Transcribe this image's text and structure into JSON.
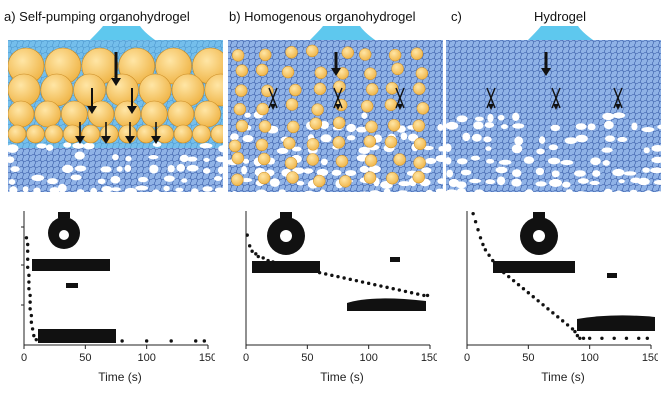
{
  "panels": [
    {
      "label": "a) Self-pumping organohydrogel",
      "droplet": "#5ec8ee",
      "gel": "#8fb2e6",
      "sphere": "#f0b64a"
    },
    {
      "label": "b) Homogenous organohydrogel",
      "droplet": "#5ec8ee",
      "gel": "#8fb2e6",
      "sphere": "#f0b64a"
    },
    {
      "label": "c)",
      "title": "Hydrogel",
      "droplet": "#5ec8ee",
      "gel": "#8fb2e6"
    }
  ],
  "chart_data": [
    {
      "type": "scatter",
      "xlabel": "Time (s)",
      "xlim": [
        0,
        150
      ],
      "xticks": [
        "0",
        "50",
        "100",
        "150"
      ],
      "ylabel": "",
      "series": [
        {
          "x": [
            2,
            3,
            3,
            3,
            3,
            4,
            4,
            4,
            5,
            5,
            5,
            6,
            6,
            7,
            8,
            10,
            14,
            20,
            30,
            40,
            60,
            80,
            100,
            120,
            140,
            147
          ],
          "y": [
            0.8,
            0.75,
            0.7,
            0.64,
            0.58,
            0.52,
            0.47,
            0.42,
            0.37,
            0.32,
            0.27,
            0.22,
            0.17,
            0.12,
            0.07,
            0.04,
            0.03,
            0.03,
            0.03,
            0.03,
            0.03,
            0.03,
            0.03,
            0.03,
            0.03,
            0.03
          ]
        }
      ]
    },
    {
      "type": "scatter",
      "xlabel": "Time (s)",
      "xlim": [
        0,
        150
      ],
      "xticks": [
        "0",
        "50",
        "100",
        "150"
      ],
      "ylabel": "",
      "series": [
        {
          "x": [
            1,
            3,
            5,
            8,
            10,
            14,
            18,
            22,
            26,
            30,
            35,
            40,
            45,
            50,
            55,
            60,
            65,
            70,
            75,
            80,
            85,
            90,
            95,
            100,
            105,
            110,
            115,
            120,
            125,
            130,
            135,
            140,
            145,
            148
          ],
          "y": [
            0.82,
            0.74,
            0.7,
            0.68,
            0.66,
            0.65,
            0.63,
            0.62,
            0.61,
            0.6,
            0.59,
            0.58,
            0.57,
            0.56,
            0.55,
            0.54,
            0.53,
            0.52,
            0.51,
            0.5,
            0.49,
            0.48,
            0.47,
            0.46,
            0.45,
            0.44,
            0.43,
            0.42,
            0.41,
            0.4,
            0.39,
            0.38,
            0.37,
            0.37
          ]
        }
      ]
    },
    {
      "type": "scatter",
      "xlabel": "Time (s)",
      "xlim": [
        0,
        150
      ],
      "xticks": [
        "0",
        "50",
        "100",
        "150"
      ],
      "ylabel": "",
      "series": [
        {
          "x": [
            5,
            7,
            9,
            11,
            13,
            15,
            18,
            21,
            24,
            27,
            30,
            34,
            38,
            42,
            46,
            50,
            54,
            58,
            62,
            66,
            70,
            74,
            78,
            82,
            86,
            88,
            90,
            92,
            95,
            100,
            110,
            120,
            130,
            140,
            147
          ],
          "y": [
            0.98,
            0.92,
            0.86,
            0.8,
            0.75,
            0.71,
            0.67,
            0.63,
            0.6,
            0.57,
            0.54,
            0.51,
            0.48,
            0.45,
            0.42,
            0.39,
            0.36,
            0.33,
            0.3,
            0.27,
            0.24,
            0.21,
            0.18,
            0.15,
            0.12,
            0.1,
            0.07,
            0.05,
            0.05,
            0.05,
            0.05,
            0.05,
            0.05,
            0.05,
            0.05
          ]
        }
      ]
    }
  ]
}
